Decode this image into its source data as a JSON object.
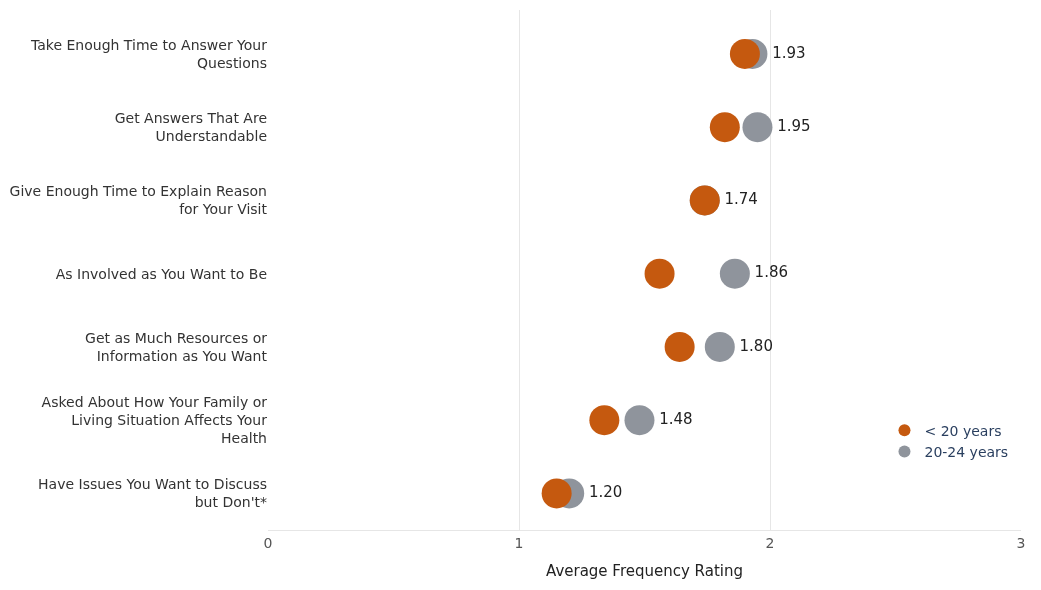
{
  "chart_data": {
    "type": "scatter",
    "orientation": "horizontal",
    "xlabel": "Average Frequency Rating",
    "categories": [
      "Take Enough Time to Answer Your Questions",
      "Get Answers That Are Understandable",
      "Give Enough Time to Explain Reason for Your Visit",
      "As Involved as You Want to Be",
      "Get as Much Resources or Information as You Want",
      "Asked About How Your Family or Living Situation Affects Your Health",
      "Have Issues You Want to Discuss but Don't*"
    ],
    "series": [
      {
        "name": "20-24 years",
        "color": "#8f949c",
        "values": [
          1.93,
          1.95,
          1.74,
          1.86,
          1.8,
          1.48,
          1.2
        ],
        "value_labels": [
          "1.93",
          "1.95",
          "1.74",
          "1.86",
          "1.80",
          "1.48",
          "1.20"
        ]
      },
      {
        "name": "< 20 years",
        "color": "#c5590f",
        "values": [
          1.9,
          1.82,
          1.74,
          1.56,
          1.64,
          1.34,
          1.15
        ]
      }
    ],
    "xlim": [
      0,
      3
    ],
    "xticks": [
      0,
      1,
      2,
      3
    ],
    "grid": "x",
    "legend": "bottom right",
    "marker": "circle"
  }
}
